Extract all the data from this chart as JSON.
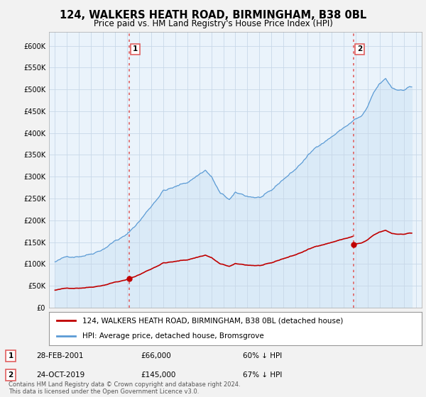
{
  "title": "124, WALKERS HEATH ROAD, BIRMINGHAM, B38 0BL",
  "subtitle": "Price paid vs. HM Land Registry's House Price Index (HPI)",
  "ytick_values": [
    0,
    50000,
    100000,
    150000,
    200000,
    250000,
    300000,
    350000,
    400000,
    450000,
    500000,
    550000,
    600000
  ],
  "ylim": [
    0,
    632000
  ],
  "xlim_start": 1994.5,
  "xlim_end": 2025.5,
  "hpi_color": "#5b9bd5",
  "hpi_fill_color": "#daeaf7",
  "price_paid_color": "#c00000",
  "vline_color": "#e06060",
  "background_color": "#f2f2f2",
  "plot_bg_color": "#eaf3fb",
  "legend_label_red": "124, WALKERS HEATH ROAD, BIRMINGHAM, B38 0BL (detached house)",
  "legend_label_blue": "HPI: Average price, detached house, Bromsgrove",
  "transaction1_date": "28-FEB-2001",
  "transaction1_price": "£66,000",
  "transaction1_hpi": "60% ↓ HPI",
  "transaction1_year": 2001.17,
  "transaction1_value": 66000,
  "transaction2_date": "24-OCT-2019",
  "transaction2_price": "£145,000",
  "transaction2_hpi": "67% ↓ HPI",
  "transaction2_year": 2019.81,
  "transaction2_value": 145000,
  "footer": "Contains HM Land Registry data © Crown copyright and database right 2024.\nThis data is licensed under the Open Government Licence v3.0."
}
